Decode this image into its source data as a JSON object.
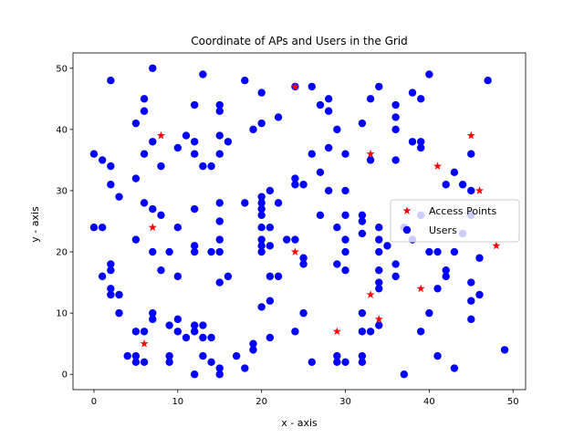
{
  "chart_data": {
    "type": "scatter",
    "title": "Coordinate of APs and Users in the Grid",
    "xlabel": "x - axis",
    "ylabel": "y - axis",
    "xlim": [
      -2.5,
      51.5
    ],
    "ylim": [
      -2.5,
      52.5
    ],
    "xticks": [
      0,
      10,
      20,
      30,
      40,
      50
    ],
    "yticks": [
      0,
      10,
      20,
      30,
      40,
      50
    ],
    "grid": false,
    "legend": "center right",
    "series": [
      {
        "name": "Access Points",
        "marker": "star",
        "color": "#ff0000",
        "points": [
          [
            8,
            39
          ],
          [
            24,
            47
          ],
          [
            33,
            36
          ],
          [
            41,
            34
          ],
          [
            45,
            39
          ],
          [
            46,
            30
          ],
          [
            7,
            24
          ],
          [
            24,
            20
          ],
          [
            48,
            21
          ],
          [
            33,
            13
          ],
          [
            39,
            14
          ],
          [
            6,
            5
          ],
          [
            29,
            7
          ],
          [
            34,
            9
          ]
        ]
      },
      {
        "name": "Users",
        "marker": "circle",
        "color": "#0000ff",
        "points": [
          [
            7,
            50
          ],
          [
            13,
            49
          ],
          [
            2,
            48
          ],
          [
            18,
            48
          ],
          [
            40,
            49
          ],
          [
            47,
            48
          ],
          [
            26,
            47
          ],
          [
            34,
            47
          ],
          [
            24,
            47
          ],
          [
            6,
            45
          ],
          [
            5,
            41
          ],
          [
            6,
            43
          ],
          [
            12,
            44
          ],
          [
            15,
            44
          ],
          [
            15,
            43
          ],
          [
            20,
            46
          ],
          [
            28,
            45
          ],
          [
            28,
            43
          ],
          [
            27,
            44
          ],
          [
            33,
            45
          ],
          [
            36,
            44
          ],
          [
            38,
            46
          ],
          [
            39,
            45
          ],
          [
            7,
            38
          ],
          [
            11,
            39
          ],
          [
            12,
            38
          ],
          [
            10,
            37
          ],
          [
            15,
            39
          ],
          [
            16,
            38
          ],
          [
            19,
            40
          ],
          [
            20,
            41
          ],
          [
            22,
            42
          ],
          [
            29,
            40
          ],
          [
            32,
            41
          ],
          [
            36,
            42
          ],
          [
            36,
            40
          ],
          [
            38,
            38
          ],
          [
            39,
            37
          ],
          [
            39,
            38
          ],
          [
            0,
            36
          ],
          [
            1,
            35
          ],
          [
            2,
            34
          ],
          [
            6,
            36
          ],
          [
            8,
            34
          ],
          [
            12,
            36
          ],
          [
            13,
            34
          ],
          [
            14,
            34
          ],
          [
            15,
            36
          ],
          [
            26,
            36
          ],
          [
            27,
            33
          ],
          [
            28,
            37
          ],
          [
            30,
            36
          ],
          [
            33,
            35
          ],
          [
            36,
            35
          ],
          [
            42,
            31
          ],
          [
            43,
            33
          ],
          [
            45,
            36
          ],
          [
            2,
            31
          ],
          [
            3,
            29
          ],
          [
            5,
            32
          ],
          [
            6,
            28
          ],
          [
            7,
            27
          ],
          [
            12,
            27
          ],
          [
            15,
            28
          ],
          [
            18,
            28
          ],
          [
            20,
            29
          ],
          [
            20,
            28
          ],
          [
            21,
            30
          ],
          [
            22,
            28
          ],
          [
            24,
            32
          ],
          [
            24,
            31
          ],
          [
            25,
            31
          ],
          [
            28,
            30
          ],
          [
            30,
            30
          ],
          [
            44,
            31
          ],
          [
            45,
            30
          ],
          [
            39,
            26
          ],
          [
            0,
            24
          ],
          [
            1,
            24
          ],
          [
            5,
            22
          ],
          [
            8,
            26
          ],
          [
            10,
            24
          ],
          [
            15,
            25
          ],
          [
            15,
            22
          ],
          [
            20,
            27
          ],
          [
            20,
            26
          ],
          [
            20,
            24
          ],
          [
            20,
            22
          ],
          [
            21,
            24
          ],
          [
            23,
            22
          ],
          [
            24,
            22
          ],
          [
            27,
            26
          ],
          [
            29,
            24
          ],
          [
            30,
            26
          ],
          [
            30,
            22
          ],
          [
            32,
            26
          ],
          [
            32,
            25
          ],
          [
            32,
            23
          ],
          [
            34,
            24
          ],
          [
            34,
            22
          ],
          [
            35,
            21
          ],
          [
            37,
            24
          ],
          [
            38,
            22
          ],
          [
            44,
            23
          ],
          [
            45,
            26
          ],
          [
            1,
            16
          ],
          [
            2,
            18
          ],
          [
            2,
            17
          ],
          [
            2,
            14
          ],
          [
            2,
            13
          ],
          [
            3,
            13
          ],
          [
            3,
            10
          ],
          [
            7,
            20
          ],
          [
            8,
            17
          ],
          [
            9,
            20
          ],
          [
            10,
            16
          ],
          [
            12,
            21
          ],
          [
            12,
            20
          ],
          [
            14,
            20
          ],
          [
            15,
            20
          ],
          [
            16,
            16
          ],
          [
            15,
            15
          ],
          [
            20,
            21
          ],
          [
            20,
            20
          ],
          [
            21,
            21
          ],
          [
            21,
            16
          ],
          [
            21,
            12
          ],
          [
            22,
            16
          ],
          [
            25,
            19
          ],
          [
            25,
            18
          ],
          [
            29,
            18
          ],
          [
            30,
            20
          ],
          [
            30,
            17
          ],
          [
            34,
            20
          ],
          [
            34,
            17
          ],
          [
            34,
            15
          ],
          [
            34,
            14
          ],
          [
            36,
            18
          ],
          [
            36,
            16
          ],
          [
            40,
            20
          ],
          [
            41,
            20
          ],
          [
            41,
            14
          ],
          [
            42,
            17
          ],
          [
            42,
            16
          ],
          [
            43,
            20
          ],
          [
            46,
            19
          ],
          [
            45,
            15
          ],
          [
            45,
            12
          ],
          [
            46,
            13
          ],
          [
            40,
            10
          ],
          [
            5,
            7
          ],
          [
            6,
            7
          ],
          [
            7,
            10
          ],
          [
            7,
            9
          ],
          [
            9,
            8
          ],
          [
            9,
            3
          ],
          [
            10,
            9
          ],
          [
            10,
            7
          ],
          [
            11,
            6
          ],
          [
            12,
            8
          ],
          [
            12,
            7
          ],
          [
            13,
            8
          ],
          [
            13,
            6
          ],
          [
            14,
            6
          ],
          [
            13,
            3
          ],
          [
            14,
            2
          ],
          [
            15,
            1
          ],
          [
            15,
            0
          ],
          [
            12,
            0
          ],
          [
            5,
            3
          ],
          [
            4,
            3
          ],
          [
            5,
            2
          ],
          [
            6,
            2
          ],
          [
            9,
            2
          ],
          [
            17,
            3
          ],
          [
            18,
            1
          ],
          [
            19,
            5
          ],
          [
            19,
            4
          ],
          [
            20,
            11
          ],
          [
            21,
            6
          ],
          [
            24,
            7
          ],
          [
            25,
            10
          ],
          [
            26,
            2
          ],
          [
            29,
            3
          ],
          [
            29,
            2
          ],
          [
            30,
            2
          ],
          [
            32,
            10
          ],
          [
            32,
            7
          ],
          [
            32,
            3
          ],
          [
            32,
            2
          ],
          [
            33,
            7
          ],
          [
            34,
            8
          ],
          [
            37,
            0
          ],
          [
            39,
            7
          ],
          [
            41,
            3
          ],
          [
            43,
            1
          ],
          [
            45,
            9
          ],
          [
            49,
            4
          ]
        ]
      }
    ]
  }
}
